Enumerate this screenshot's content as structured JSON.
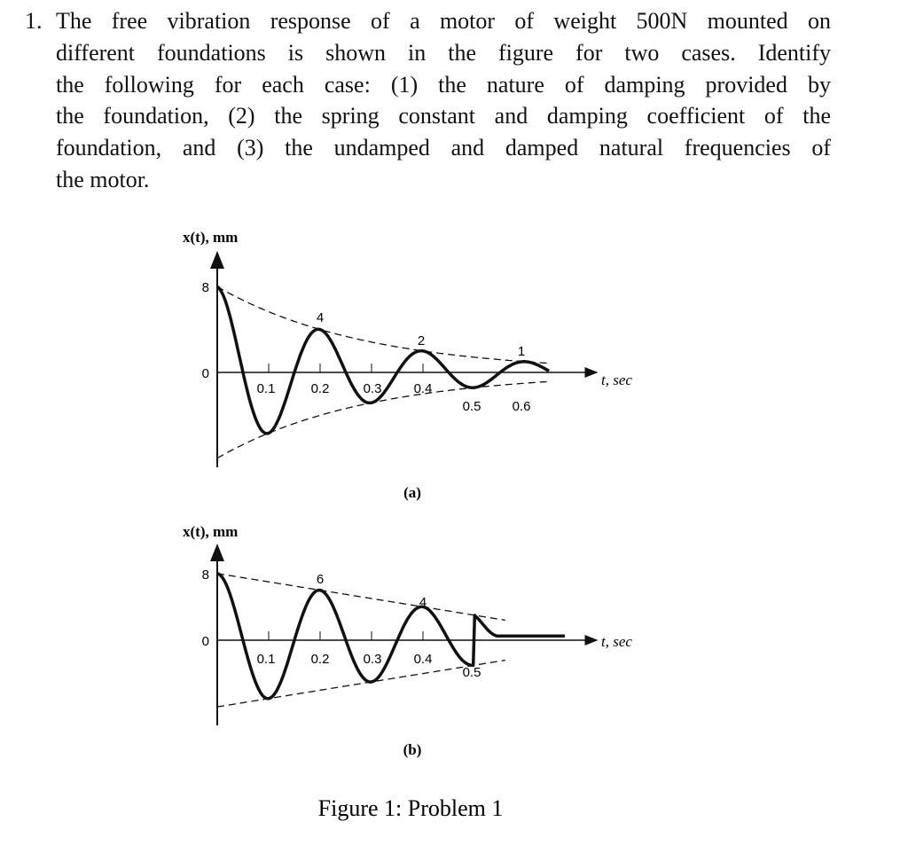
{
  "problem": {
    "number": "1.",
    "lines": [
      "The free vibration response of a motor of weight 500N mounted on",
      "different foundations is shown in the figure for two cases. Identify",
      "the following for each case: (1) the nature of damping provided by",
      "the foundation, (2) the spring constant and damping coefficient of the",
      "foundation, and (3) the undamped and damped natural frequencies of",
      "the motor."
    ]
  },
  "figures": [
    {
      "y_label": "x(t), mm",
      "x_label": "t, sec",
      "y_ticks": [
        "8",
        "0"
      ],
      "t_ticks": [
        "0.1",
        "0.2",
        "0.3",
        "0.4",
        "0.5",
        "0.6"
      ],
      "peak_labels": [
        "4",
        "2",
        "1"
      ],
      "caption": "(a)"
    },
    {
      "y_label": "x(t), mm",
      "x_label": "t, sec",
      "y_ticks": [
        "8",
        "0"
      ],
      "t_ticks": [
        "0.1",
        "0.2",
        "0.3",
        "0.4",
        "0.5"
      ],
      "peak_labels": [
        "6",
        "4"
      ],
      "caption": "(b)"
    }
  ],
  "caption": "Figure 1: Problem 1"
}
